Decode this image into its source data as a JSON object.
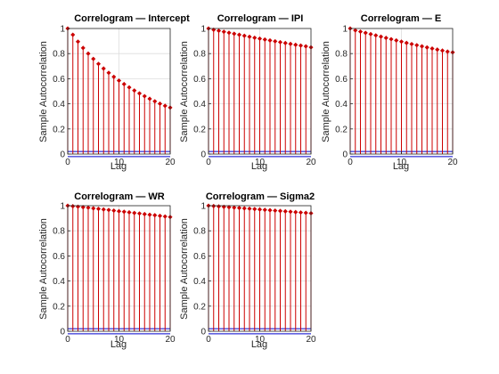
{
  "chart_data": [
    {
      "type": "stem",
      "title": "Correlogram — Intercept",
      "xlabel": "Lag",
      "ylabel": "Sample Autocorrelation",
      "xlim": [
        0,
        20
      ],
      "ylim": [
        0,
        1
      ],
      "xticks": [
        "0",
        "10",
        "20"
      ],
      "yticks": [
        "0",
        "0.2",
        "0.4",
        "0.6",
        "0.8",
        "1"
      ],
      "grid": true,
      "x": [
        0,
        1,
        2,
        3,
        4,
        5,
        6,
        7,
        8,
        9,
        10,
        11,
        12,
        13,
        14,
        15,
        16,
        17,
        18,
        19,
        20
      ],
      "values": [
        1.0,
        0.95,
        0.895,
        0.845,
        0.8,
        0.758,
        0.718,
        0.681,
        0.647,
        0.615,
        0.585,
        0.557,
        0.531,
        0.506,
        0.483,
        0.461,
        0.44,
        0.42,
        0.401,
        0.384,
        0.37
      ],
      "confidence_bounds": [
        0.02,
        -0.02
      ],
      "colors": {
        "stem": "#cc0000",
        "bound": "#0000cc"
      }
    },
    {
      "type": "stem",
      "title": "Correlogram — IPI",
      "xlabel": "Lag",
      "ylabel": "Sample Autocorrelation",
      "xlim": [
        0,
        20
      ],
      "ylim": [
        0,
        1
      ],
      "xticks": [
        "0",
        "10",
        "20"
      ],
      "yticks": [
        "0",
        "0.2",
        "0.4",
        "0.6",
        "0.8",
        "1"
      ],
      "grid": true,
      "x": [
        0,
        1,
        2,
        3,
        4,
        5,
        6,
        7,
        8,
        9,
        10,
        11,
        12,
        13,
        14,
        15,
        16,
        17,
        18,
        19,
        20
      ],
      "values": [
        1.0,
        0.99,
        0.982,
        0.974,
        0.966,
        0.958,
        0.95,
        0.942,
        0.934,
        0.926,
        0.919,
        0.912,
        0.905,
        0.898,
        0.891,
        0.884,
        0.877,
        0.87,
        0.864,
        0.858,
        0.85
      ],
      "confidence_bounds": [
        0.02,
        -0.02
      ],
      "colors": {
        "stem": "#cc0000",
        "bound": "#0000cc"
      }
    },
    {
      "type": "stem",
      "title": "Correlogram — E",
      "xlabel": "Lag",
      "ylabel": "Sample Autocorrelation",
      "xlim": [
        0,
        20
      ],
      "ylim": [
        0,
        1
      ],
      "xticks": [
        "0",
        "10",
        "20"
      ],
      "yticks": [
        "0",
        "0.2",
        "0.4",
        "0.6",
        "0.8",
        "1"
      ],
      "grid": true,
      "x": [
        0,
        1,
        2,
        3,
        4,
        5,
        6,
        7,
        8,
        9,
        10,
        11,
        12,
        13,
        14,
        15,
        16,
        17,
        18,
        19,
        20
      ],
      "values": [
        1.0,
        0.985,
        0.975,
        0.965,
        0.955,
        0.945,
        0.935,
        0.925,
        0.915,
        0.905,
        0.895,
        0.885,
        0.876,
        0.867,
        0.858,
        0.849,
        0.84,
        0.832,
        0.824,
        0.816,
        0.81
      ],
      "confidence_bounds": [
        0.02,
        -0.02
      ],
      "colors": {
        "stem": "#cc0000",
        "bound": "#0000cc"
      }
    },
    {
      "type": "stem",
      "title": "Correlogram — WR",
      "xlabel": "Lag",
      "ylabel": "Sample Autocorrelation",
      "xlim": [
        0,
        20
      ],
      "ylim": [
        0,
        1
      ],
      "xticks": [
        "0",
        "10",
        "20"
      ],
      "yticks": [
        "0",
        "0.2",
        "0.4",
        "0.6",
        "0.8",
        "1"
      ],
      "grid": true,
      "x": [
        0,
        1,
        2,
        3,
        4,
        5,
        6,
        7,
        8,
        9,
        10,
        11,
        12,
        13,
        14,
        15,
        16,
        17,
        18,
        19,
        20
      ],
      "values": [
        1.0,
        0.996,
        0.992,
        0.988,
        0.984,
        0.979,
        0.975,
        0.97,
        0.966,
        0.961,
        0.956,
        0.952,
        0.947,
        0.942,
        0.938,
        0.933,
        0.928,
        0.924,
        0.919,
        0.914,
        0.91
      ],
      "confidence_bounds": [
        0.02,
        -0.02
      ],
      "colors": {
        "stem": "#cc0000",
        "bound": "#0000cc"
      }
    },
    {
      "type": "stem",
      "title": "Correlogram — Sigma2",
      "xlabel": "Lag",
      "ylabel": "Sample Autocorrelation",
      "xlim": [
        0,
        20
      ],
      "ylim": [
        0,
        1
      ],
      "xticks": [
        "0",
        "10",
        "20"
      ],
      "yticks": [
        "0",
        "0.2",
        "0.4",
        "0.6",
        "0.8",
        "1"
      ],
      "grid": true,
      "x": [
        0,
        1,
        2,
        3,
        4,
        5,
        6,
        7,
        8,
        9,
        10,
        11,
        12,
        13,
        14,
        15,
        16,
        17,
        18,
        19,
        20
      ],
      "values": [
        1.0,
        0.997,
        0.994,
        0.991,
        0.988,
        0.985,
        0.982,
        0.979,
        0.976,
        0.973,
        0.97,
        0.967,
        0.964,
        0.961,
        0.958,
        0.955,
        0.952,
        0.949,
        0.946,
        0.943,
        0.94
      ],
      "confidence_bounds": [
        0.02,
        -0.02
      ],
      "colors": {
        "stem": "#cc0000",
        "bound": "#0000cc"
      }
    }
  ]
}
